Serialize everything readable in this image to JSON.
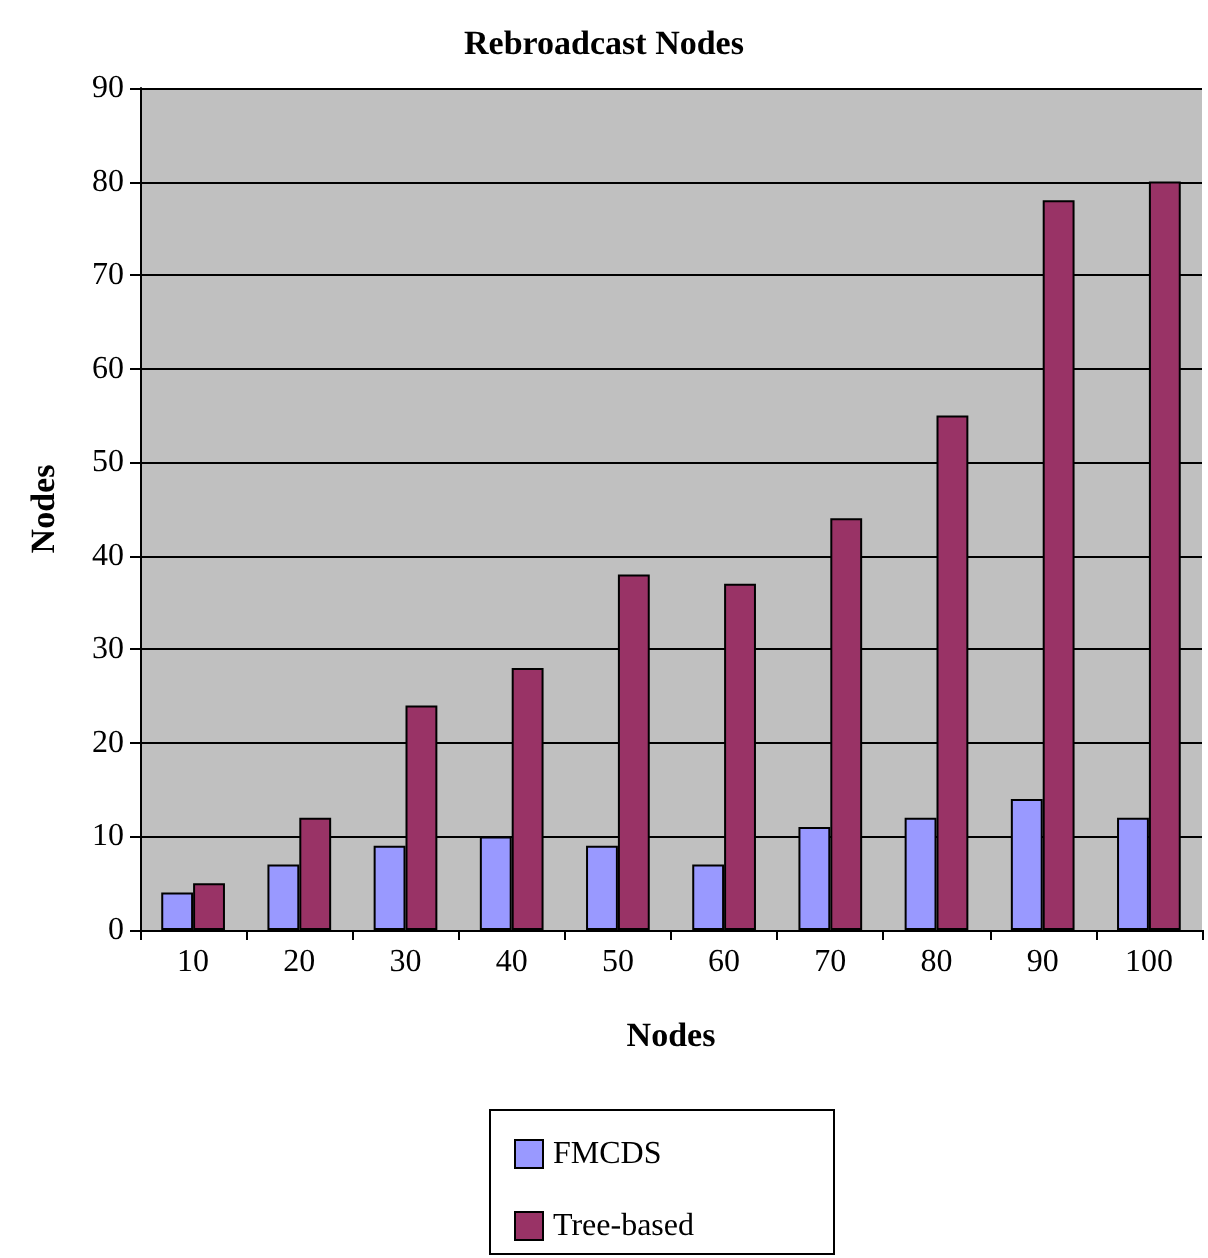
{
  "chart_data": {
    "type": "bar",
    "title": "Rebroadcast Nodes",
    "xlabel": "Nodes",
    "ylabel": "Nodes",
    "categories": [
      "10",
      "20",
      "30",
      "40",
      "50",
      "60",
      "70",
      "80",
      "90",
      "100"
    ],
    "series": [
      {
        "name": "FMCDS",
        "color": "#9999ff",
        "values": [
          4,
          7,
          9,
          10,
          9,
          7,
          11,
          12,
          14,
          12
        ]
      },
      {
        "name": "Tree-based",
        "color": "#993366",
        "values": [
          5,
          12,
          24,
          28,
          38,
          37,
          44,
          55,
          78,
          80
        ]
      }
    ],
    "ylim": [
      0,
      90
    ],
    "yticks": [
      0,
      10,
      20,
      30,
      40,
      50,
      60,
      70,
      80,
      90
    ],
    "grid": "y",
    "legend": "bottom"
  }
}
